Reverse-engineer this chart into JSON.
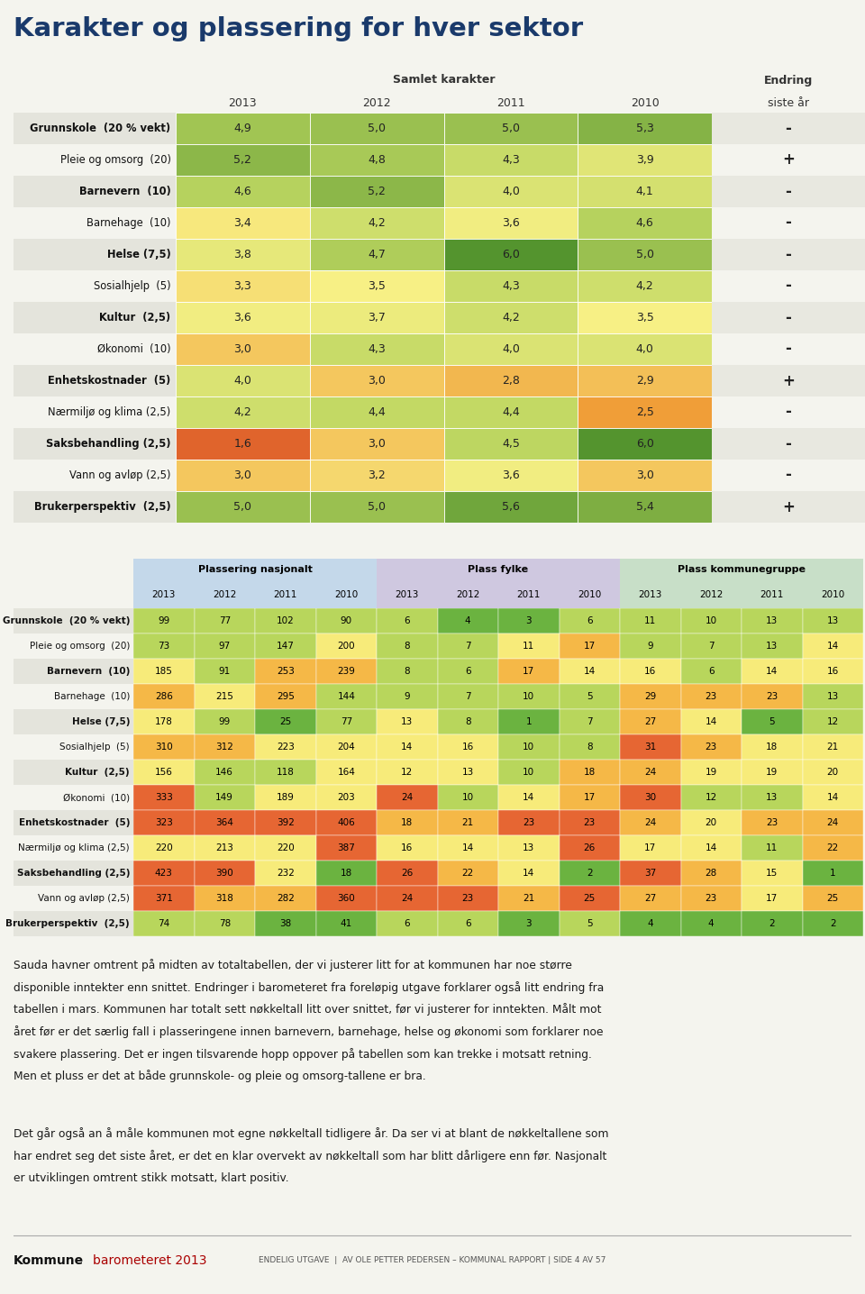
{
  "title": "Karakter og plassering for hver sektor",
  "table1_header_main": "Samlet karakter",
  "table1_years": [
    "2013",
    "2012",
    "2011",
    "2010"
  ],
  "rows": [
    {
      "label": "Grunnskole  (20 % vekt)",
      "values": [
        4.9,
        5.0,
        5.0,
        5.3
      ],
      "endring": "-"
    },
    {
      "label": "Pleie og omsorg  (20)",
      "values": [
        5.2,
        4.8,
        4.3,
        3.9
      ],
      "endring": "+"
    },
    {
      "label": "Barnevern  (10)",
      "values": [
        4.6,
        5.2,
        4.0,
        4.1
      ],
      "endring": "-"
    },
    {
      "label": "Barnehage  (10)",
      "values": [
        3.4,
        4.2,
        3.6,
        4.6
      ],
      "endring": "-"
    },
    {
      "label": "Helse (7,5)",
      "values": [
        3.8,
        4.7,
        6.0,
        5.0
      ],
      "endring": "-"
    },
    {
      "label": "Sosialhjelp  (5)",
      "values": [
        3.3,
        3.5,
        4.3,
        4.2
      ],
      "endring": "-"
    },
    {
      "label": "Kultur  (2,5)",
      "values": [
        3.6,
        3.7,
        4.2,
        3.5
      ],
      "endring": "-"
    },
    {
      "label": "Økonomi  (10)",
      "values": [
        3.0,
        4.3,
        4.0,
        4.0
      ],
      "endring": "-"
    },
    {
      "label": "Enhetskostnader  (5)",
      "values": [
        4.0,
        3.0,
        2.8,
        2.9
      ],
      "endring": "+"
    },
    {
      "label": "Nærmiljø og klima (2,5)",
      "values": [
        4.2,
        4.4,
        4.4,
        2.5
      ],
      "endring": "-"
    },
    {
      "label": "Saksbehandling (2,5)",
      "values": [
        1.6,
        3.0,
        4.5,
        6.0
      ],
      "endring": "-"
    },
    {
      "label": "Vann og avløp (2,5)",
      "values": [
        3.0,
        3.2,
        3.6,
        3.0
      ],
      "endring": "-"
    },
    {
      "label": "Brukerperspektiv  (2,5)",
      "values": [
        5.0,
        5.0,
        5.6,
        5.4
      ],
      "endring": "+"
    }
  ],
  "table2_header_groups": [
    "Plassering nasjonalt",
    "Plass fylke",
    "Plass kommunegruppe"
  ],
  "table2_years": [
    "2013",
    "2012",
    "2011",
    "2010"
  ],
  "rows2": [
    {
      "label": "Grunnskole  (20 % vekt)",
      "nat": [
        99,
        77,
        102,
        90
      ],
      "fylke": [
        6,
        4,
        3,
        6
      ],
      "gruppe": [
        11,
        10,
        13,
        13
      ]
    },
    {
      "label": "Pleie og omsorg  (20)",
      "nat": [
        73,
        97,
        147,
        200
      ],
      "fylke": [
        8,
        7,
        11,
        17
      ],
      "gruppe": [
        9,
        7,
        13,
        14
      ]
    },
    {
      "label": "Barnevern  (10)",
      "nat": [
        185,
        91,
        253,
        239
      ],
      "fylke": [
        8,
        6,
        17,
        14
      ],
      "gruppe": [
        16,
        6,
        14,
        16
      ]
    },
    {
      "label": "Barnehage  (10)",
      "nat": [
        286,
        215,
        295,
        144
      ],
      "fylke": [
        9,
        7,
        10,
        5
      ],
      "gruppe": [
        29,
        23,
        23,
        13
      ]
    },
    {
      "label": "Helse (7,5)",
      "nat": [
        178,
        99,
        25,
        77
      ],
      "fylke": [
        13,
        8,
        1,
        7
      ],
      "gruppe": [
        27,
        14,
        5,
        12
      ]
    },
    {
      "label": "Sosialhjelp  (5)",
      "nat": [
        310,
        312,
        223,
        204
      ],
      "fylke": [
        14,
        16,
        10,
        8
      ],
      "gruppe": [
        31,
        23,
        18,
        21
      ]
    },
    {
      "label": "Kultur  (2,5)",
      "nat": [
        156,
        146,
        118,
        164
      ],
      "fylke": [
        12,
        13,
        10,
        18
      ],
      "gruppe": [
        24,
        19,
        19,
        20
      ]
    },
    {
      "label": "Økonomi  (10)",
      "nat": [
        333,
        149,
        189,
        203
      ],
      "fylke": [
        24,
        10,
        14,
        17
      ],
      "gruppe": [
        30,
        12,
        13,
        14
      ]
    },
    {
      "label": "Enhetskostnader  (5)",
      "nat": [
        323,
        364,
        392,
        406
      ],
      "fylke": [
        18,
        21,
        23,
        23
      ],
      "gruppe": [
        24,
        20,
        23,
        24
      ]
    },
    {
      "label": "Nærmiljø og klima (2,5)",
      "nat": [
        220,
        213,
        220,
        387
      ],
      "fylke": [
        16,
        14,
        13,
        26
      ],
      "gruppe": [
        17,
        14,
        11,
        22
      ]
    },
    {
      "label": "Saksbehandling (2,5)",
      "nat": [
        423,
        390,
        232,
        18
      ],
      "fylke": [
        26,
        22,
        14,
        2
      ],
      "gruppe": [
        37,
        28,
        15,
        1
      ]
    },
    {
      "label": "Vann og avløp (2,5)",
      "nat": [
        371,
        318,
        282,
        360
      ],
      "fylke": [
        24,
        23,
        21,
        25
      ],
      "gruppe": [
        27,
        23,
        17,
        25
      ]
    },
    {
      "label": "Brukerperspektiv  (2,5)",
      "nat": [
        74,
        78,
        38,
        41
      ],
      "fylke": [
        6,
        6,
        3,
        5
      ],
      "gruppe": [
        4,
        4,
        2,
        2
      ]
    }
  ],
  "body_text_para1": [
    "Sauda havner omtrent på midten av totaltabellen, der vi justerer litt for at kommunen har noe større",
    "disponible inntekter enn snittet. Endringer i barometeret fra foreløpig utgave forklarer også litt endring fra",
    "tabellen i mars. Kommunen har totalt sett nøkkeltall litt over snittet, før vi justerer for inntekten. Målt mot",
    "året før er det særlig fall i plasseringene innen barnevern, barnehage, helse og økonomi som forklarer noe",
    "svakere plassering. Det er ingen tilsvarende hopp oppover på tabellen som kan trekke i motsatt retning.",
    "Men et pluss er det at både grunnskole- og pleie og omsorg-tallene er bra."
  ],
  "body_text_para2": [
    "Det går også an å måle kommunen mot egne nøkkeltall tidligere år. Da ser vi at blant de nøkkeltallene som",
    "har endret seg det siste året, er det en klar overvekt av nøkkeltall som har blitt dårligere enn før. Nasjonalt",
    "er utviklingen omtrent stikk motsatt, klart positiv."
  ],
  "footer_bold": "Kommune",
  "footer_red": "barometeret 2013",
  "footer_center": "ENDELIG UTGAVE  |  AV OLE PETTER PEDERSEN – KOMMUNAL RAPPORT | SIDE 4 AV 57",
  "bg_color": "#f4f4ee",
  "header_bg": "#b8c9d9",
  "nat_bg": "#c4d8ea",
  "fylke_bg": "#cfc8e0",
  "gruppe_bg": "#c8dfc8",
  "title_color": "#1a3a6b",
  "line_color": "#1a3a6b"
}
